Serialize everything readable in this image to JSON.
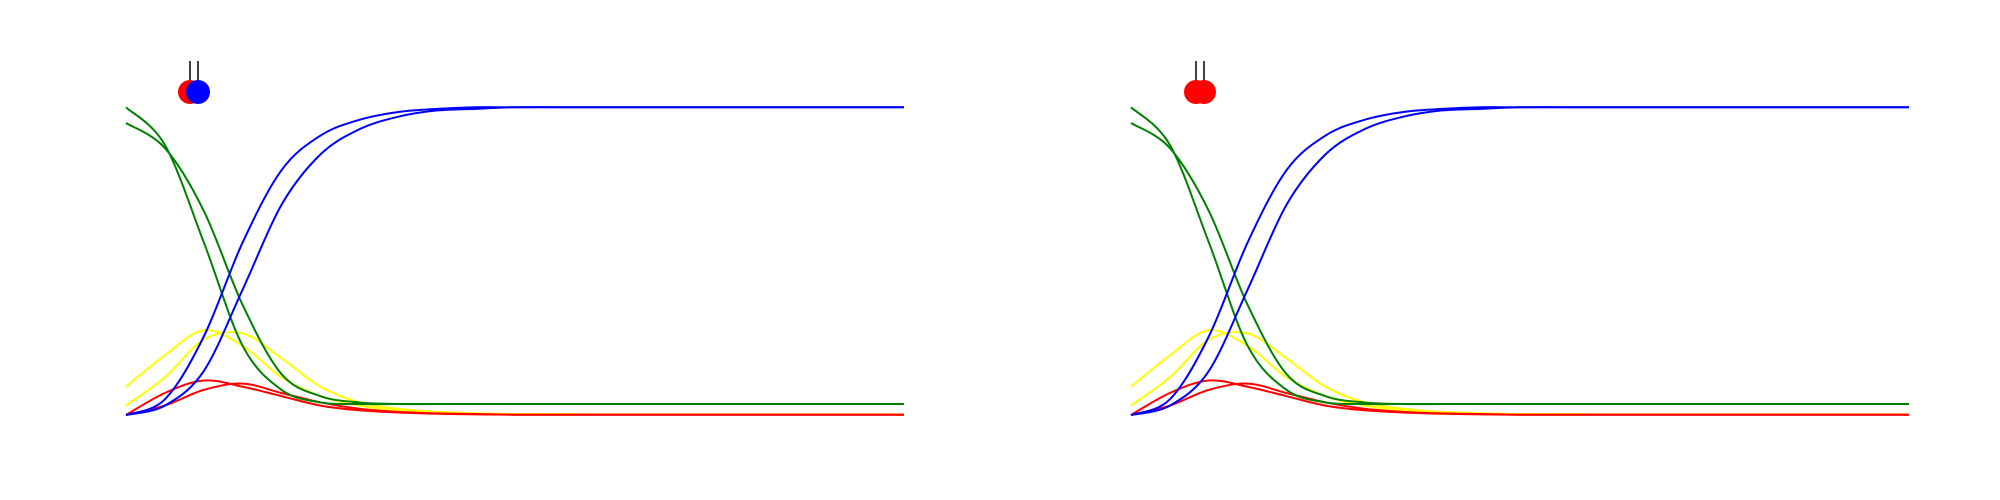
{
  "colors": {
    "green": "#008000",
    "blue": "#0000ff",
    "yellow": "#ffff00",
    "red": "#ff0000",
    "black": "#000000",
    "background": "#ffffff"
  },
  "chart_data": [
    {
      "type": "line",
      "title": "",
      "xlabel": "",
      "ylabel": "",
      "axes": "hidden",
      "grid": false,
      "legend": "none",
      "xlim": [
        0,
        100
      ],
      "ylim": [
        0,
        1
      ],
      "x": [
        0,
        5,
        10,
        15,
        20,
        25,
        30,
        35,
        40,
        45,
        50,
        60,
        70,
        80,
        90,
        100
      ],
      "series": [
        {
          "color": "green",
          "values": [
            0.98,
            0.86,
            0.55,
            0.22,
            0.08,
            0.04,
            0.035,
            0.035,
            0.035,
            0.035,
            0.035,
            0.035,
            0.035,
            0.035,
            0.035,
            0.035
          ]
        },
        {
          "color": "green",
          "values": [
            0.93,
            0.85,
            0.65,
            0.35,
            0.13,
            0.06,
            0.04,
            0.035,
            0.035,
            0.035,
            0.035,
            0.035,
            0.035,
            0.035,
            0.035,
            0.035
          ]
        },
        {
          "color": "blue",
          "values": [
            0.0,
            0.05,
            0.25,
            0.55,
            0.78,
            0.89,
            0.94,
            0.965,
            0.975,
            0.98,
            0.98,
            0.98,
            0.98,
            0.98,
            0.98,
            0.98
          ]
        },
        {
          "color": "blue",
          "values": [
            0.0,
            0.03,
            0.14,
            0.4,
            0.67,
            0.83,
            0.91,
            0.95,
            0.97,
            0.975,
            0.98,
            0.98,
            0.98,
            0.98,
            0.98,
            0.98
          ]
        },
        {
          "color": "yellow",
          "values": [
            0.09,
            0.19,
            0.27,
            0.22,
            0.12,
            0.06,
            0.03,
            0.015,
            0.01,
            0.005,
            0.003,
            0.002,
            0.002,
            0.002,
            0.002,
            0.002
          ]
        },
        {
          "color": "yellow",
          "values": [
            0.03,
            0.12,
            0.24,
            0.26,
            0.18,
            0.09,
            0.04,
            0.02,
            0.01,
            0.005,
            0.003,
            0.002,
            0.002,
            0.002,
            0.002,
            0.002
          ]
        },
        {
          "color": "red",
          "values": [
            0.0,
            0.07,
            0.11,
            0.09,
            0.06,
            0.03,
            0.015,
            0.008,
            0.004,
            0.002,
            0.001,
            0.001,
            0.001,
            0.001,
            0.001,
            0.001
          ]
        },
        {
          "color": "red",
          "values": [
            0.0,
            0.03,
            0.08,
            0.1,
            0.07,
            0.04,
            0.02,
            0.01,
            0.005,
            0.003,
            0.001,
            0.001,
            0.001,
            0.001,
            0.001,
            0.001
          ]
        }
      ],
      "markers": [
        {
          "color": "red"
        },
        {
          "color": "blue"
        }
      ]
    },
    {
      "type": "line",
      "title": "",
      "xlabel": "",
      "ylabel": "",
      "axes": "hidden",
      "grid": false,
      "legend": "none",
      "xlim": [
        0,
        100
      ],
      "ylim": [
        0,
        1
      ],
      "x": [
        0,
        5,
        10,
        15,
        20,
        25,
        30,
        35,
        40,
        45,
        50,
        60,
        70,
        80,
        90,
        100
      ],
      "series": [
        {
          "color": "green",
          "values": [
            0.98,
            0.86,
            0.55,
            0.22,
            0.08,
            0.04,
            0.035,
            0.035,
            0.035,
            0.035,
            0.035,
            0.035,
            0.035,
            0.035,
            0.035,
            0.035
          ]
        },
        {
          "color": "green",
          "values": [
            0.93,
            0.85,
            0.65,
            0.35,
            0.13,
            0.06,
            0.04,
            0.035,
            0.035,
            0.035,
            0.035,
            0.035,
            0.035,
            0.035,
            0.035,
            0.035
          ]
        },
        {
          "color": "blue",
          "values": [
            0.0,
            0.05,
            0.25,
            0.55,
            0.78,
            0.89,
            0.94,
            0.965,
            0.975,
            0.98,
            0.98,
            0.98,
            0.98,
            0.98,
            0.98,
            0.98
          ]
        },
        {
          "color": "blue",
          "values": [
            0.0,
            0.03,
            0.14,
            0.4,
            0.67,
            0.83,
            0.91,
            0.95,
            0.97,
            0.975,
            0.98,
            0.98,
            0.98,
            0.98,
            0.98,
            0.98
          ]
        },
        {
          "color": "yellow",
          "values": [
            0.09,
            0.19,
            0.27,
            0.22,
            0.12,
            0.06,
            0.03,
            0.015,
            0.01,
            0.005,
            0.003,
            0.002,
            0.002,
            0.002,
            0.002,
            0.002
          ]
        },
        {
          "color": "yellow",
          "values": [
            0.03,
            0.12,
            0.24,
            0.26,
            0.18,
            0.09,
            0.04,
            0.02,
            0.01,
            0.005,
            0.003,
            0.002,
            0.002,
            0.002,
            0.002,
            0.002
          ]
        },
        {
          "color": "red",
          "values": [
            0.0,
            0.07,
            0.11,
            0.09,
            0.06,
            0.03,
            0.015,
            0.008,
            0.004,
            0.002,
            0.001,
            0.001,
            0.001,
            0.001,
            0.001,
            0.001
          ]
        },
        {
          "color": "red",
          "values": [
            0.0,
            0.03,
            0.08,
            0.1,
            0.07,
            0.04,
            0.02,
            0.01,
            0.005,
            0.003,
            0.001,
            0.001,
            0.001,
            0.001,
            0.001,
            0.001
          ]
        }
      ],
      "markers": [
        {
          "color": "red"
        },
        {
          "color": "red"
        }
      ]
    }
  ]
}
